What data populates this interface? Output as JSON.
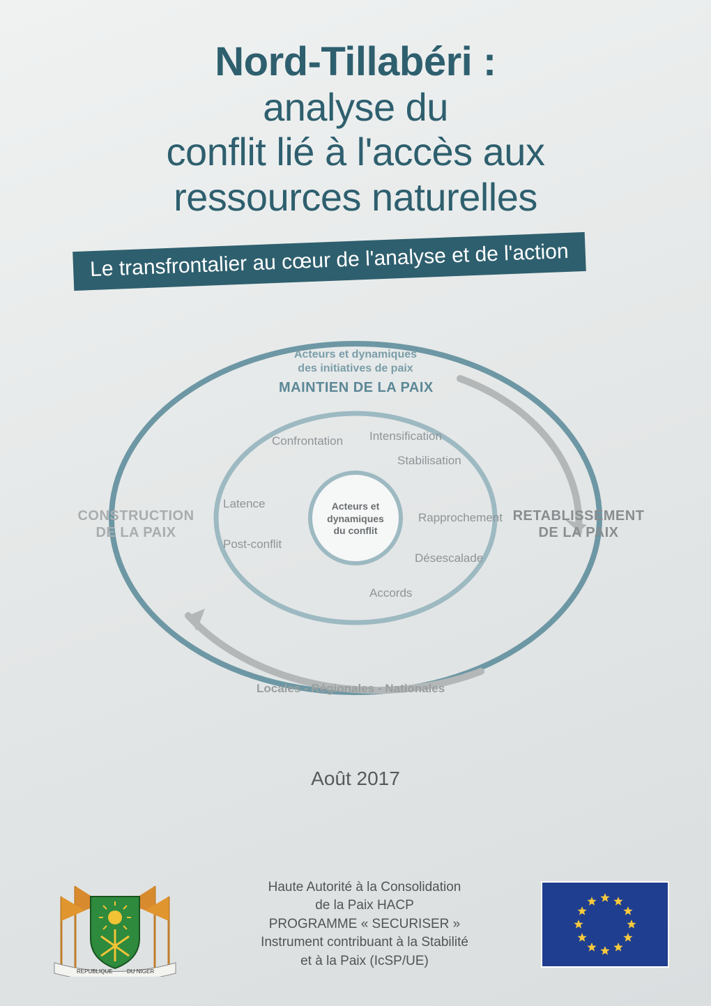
{
  "title": {
    "bold": "Nord-Tillabéri :",
    "line1": "analyse du",
    "line2": "conflit lié à l'accès aux",
    "line3": "ressources naturelles",
    "bold_fontsize": 58,
    "light_fontsize": 56,
    "color": "#2e5f6e"
  },
  "subtitle": {
    "text": "Le transfrontalier au cœur de l'analyse et de l'action",
    "bg_color": "#2e5f6e",
    "text_color": "#ffffff",
    "rotate_deg": -2.2
  },
  "diagram": {
    "top_small_line1": "Acteurs et dynamiques",
    "top_small_line2": "des initiatives de paix",
    "heading_top": "MAINTIEN DE LA PAIX",
    "side_left_line1": "CONSTRUCTION",
    "side_left_line2": "DE LA PAIX",
    "side_right_line1": "RETABLISSEMENT",
    "side_right_line2": "DE LA PAIX",
    "center_line1": "Acteurs et",
    "center_line2": "dynamiques",
    "center_line3": "du conflit",
    "stages": {
      "confrontation": "Confrontation",
      "intensification": "Intensification",
      "stabilisation": "Stabilisation",
      "latence": "Latence",
      "rapprochement": "Rapprochement",
      "post_conflit": "Post-conflit",
      "desescalade": "Désescalade",
      "accords": "Accords"
    },
    "bottom": "Locales - Régionales - Nationales",
    "outer_ellipse_stroke": "#6d97a4",
    "outer_ellipse_width": 8,
    "mid_ellipse_stroke": "#9db9c2",
    "inner_circle_stroke": "#9db9c2",
    "arrow_color": "#b3b7b8"
  },
  "date": "Août 2017",
  "footer": {
    "line1": "Haute Autorité à la Consolidation",
    "line2": "de la Paix  HACP",
    "line3": "PROGRAMME « SECURISER »",
    "line4": "Instrument contribuant à la Stabilité",
    "line5": "et à la Paix (IcSP/UE)",
    "emblem_left_label": "REPUBLIQUE",
    "emblem_right_label": "DU   NIGER",
    "eu_flag_bg": "#1f3e8f",
    "eu_star_color": "#f7c93e"
  }
}
